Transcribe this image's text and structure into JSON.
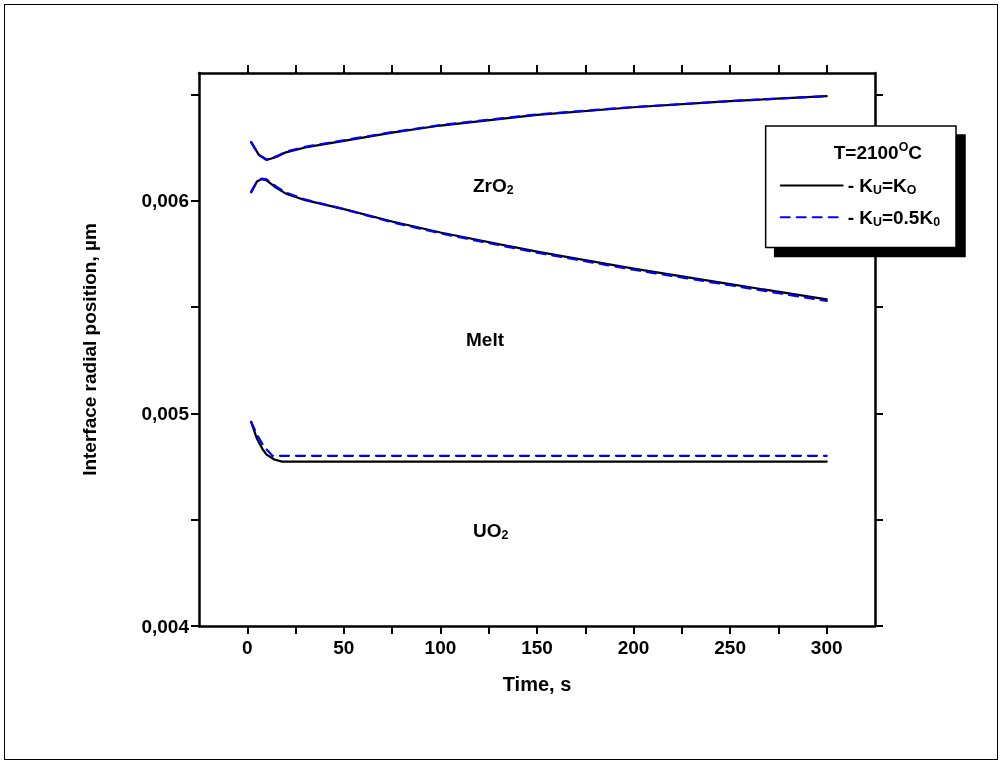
{
  "chart_data": {
    "type": "line",
    "xlabel": "Time, s",
    "ylabel": "Interface radial position, µm",
    "legend_title": "T=2100$^{O}$C",
    "legend": "top right",
    "marker": "none",
    "grid": false,
    "xlim": [
      -25,
      325
    ],
    "xticks": [
      0,
      {
        "value": 25,
        "label": null
      },
      50,
      {
        "value": 75,
        "label": null
      },
      100,
      {
        "value": 125,
        "label": null
      },
      150,
      {
        "value": 175,
        "label": null
      },
      200,
      {
        "value": 225,
        "label": null
      },
      250,
      {
        "value": 275,
        "label": null
      },
      300
    ],
    "ylim": [
      0.004,
      0.0066
    ],
    "yticks": [
      {
        "value": 0.004,
        "label": "0,004"
      },
      {
        "value": 0.0045,
        "label": null
      },
      {
        "value": 0.005,
        "label": "0,005"
      },
      {
        "value": 0.0055,
        "label": null
      },
      {
        "value": 0.006,
        "label": "0,006"
      },
      {
        "value": 0.0065,
        "label": null
      }
    ],
    "series": [
      {
        "name": "- K$_{U}$=K$_{O}$",
        "color": "#000000",
        "line_style": "solid",
        "x": [
          2,
          6,
          10,
          15,
          20,
          30,
          50,
          75,
          100,
          150,
          200,
          250,
          300
        ],
        "values": [
          0.006275,
          0.006215,
          0.006191,
          0.006205,
          0.006227,
          0.00625,
          0.006281,
          0.00632,
          0.006353,
          0.006403,
          0.006439,
          0.006468,
          0.006491
        ]
      },
      {
        "color": "#000000",
        "line_style": "solid",
        "x": [
          2,
          5,
          7.4,
          10,
          15,
          20,
          30,
          50,
          75,
          100,
          150,
          200,
          250,
          300
        ],
        "values": [
          0.00604,
          0.00609,
          0.006101,
          0.006095,
          0.00606,
          0.006033,
          0.006002,
          0.00596,
          0.005902,
          0.00585,
          0.00576,
          0.00568,
          0.005607,
          0.005536
        ]
      },
      {
        "color": "#000000",
        "line_style": "solid",
        "x": [
          2,
          5,
          8,
          10,
          14,
          18,
          50,
          100,
          150,
          200,
          250,
          300
        ],
        "values": [
          0.00496,
          0.00488,
          0.00483,
          0.004806,
          0.004783,
          0.004773,
          0.004773,
          0.004773,
          0.004773,
          0.004773,
          0.004773,
          0.004773
        ]
      },
      {
        "name": "- K$_{U}$=0.5K$_{0}$",
        "color": "#0000ff",
        "line_style": "dashed",
        "x": [
          2,
          6,
          10,
          15,
          20,
          30,
          50,
          75,
          100,
          150,
          200,
          250,
          300
        ],
        "values": [
          0.006275,
          0.006215,
          0.006193,
          0.006208,
          0.00623,
          0.006253,
          0.006284,
          0.006322,
          0.006355,
          0.006405,
          0.00644,
          0.006468,
          0.006491
        ]
      },
      {
        "color": "#0000ff",
        "line_style": "dashed",
        "x": [
          2,
          5,
          7.4,
          10,
          15,
          20,
          30,
          50,
          75,
          100,
          150,
          200,
          250,
          300
        ],
        "values": [
          0.00604,
          0.00609,
          0.006103,
          0.0061,
          0.006066,
          0.006038,
          0.006005,
          0.00596,
          0.005898,
          0.005846,
          0.005755,
          0.005675,
          0.005602,
          0.005528
        ]
      },
      {
        "color": "#0000ff",
        "line_style": "dashed",
        "x": [
          2,
          5,
          8,
          10,
          13,
          50,
          100,
          150,
          200,
          250,
          300
        ],
        "values": [
          0.00496,
          0.0049,
          0.004853,
          0.00483,
          0.0048,
          0.0048,
          0.0048,
          0.0048,
          0.0048,
          0.0048,
          0.0048
        ]
      }
    ],
    "annotations": [
      "ZrO$_{2}$",
      "Melt",
      "UO$_{2}$"
    ]
  }
}
